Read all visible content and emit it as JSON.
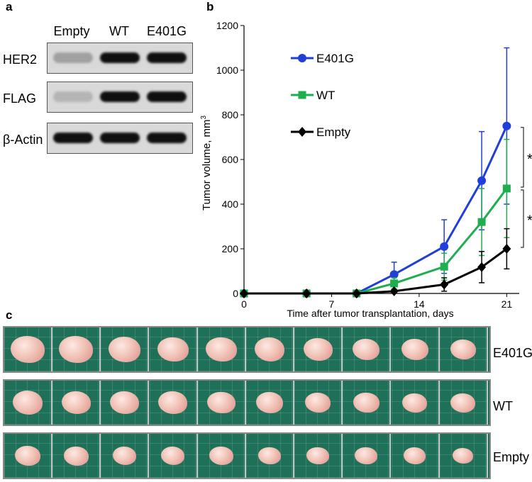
{
  "panels": {
    "a": "a",
    "b": "b",
    "c": "c"
  },
  "blot": {
    "lanes": [
      "Empty",
      "WT",
      "E401G"
    ],
    "rows": [
      {
        "label": "HER2",
        "intensity": [
          0.25,
          1.0,
          1.0
        ]
      },
      {
        "label": "FLAG",
        "intensity": [
          0.15,
          1.0,
          1.0
        ]
      },
      {
        "label": "β-Actin",
        "intensity": [
          1.0,
          1.0,
          1.0
        ]
      }
    ]
  },
  "chart_data": {
    "type": "line",
    "xlabel": "Time after tumor transplantation, days",
    "ylabel": "Tumor volume, mm3",
    "ylabel_prefix": "Tumor volume, mm",
    "ylabel_sup": "3",
    "x_ticks": [
      "0",
      "7",
      "14",
      "21"
    ],
    "y_ticks": [
      "0",
      "200",
      "400",
      "600",
      "800",
      "1000",
      "1200"
    ],
    "xlim": [
      0,
      22
    ],
    "ylim": [
      0,
      1200
    ],
    "legend_position": "top-left",
    "series": [
      {
        "name": "E401G",
        "color": "#1f3fd8",
        "marker": "circle",
        "x": [
          0,
          5,
          9,
          12,
          16,
          19,
          21
        ],
        "y": [
          0,
          0,
          0,
          85,
          210,
          505,
          750
        ],
        "err": [
          0,
          0,
          0,
          55,
          120,
          220,
          350
        ]
      },
      {
        "name": "WT",
        "color": "#1fae4f",
        "marker": "square",
        "x": [
          0,
          5,
          9,
          12,
          16,
          19,
          21
        ],
        "y": [
          0,
          0,
          0,
          45,
          120,
          320,
          470
        ],
        "err": [
          0,
          0,
          0,
          25,
          60,
          150,
          220
        ]
      },
      {
        "name": "Empty",
        "color": "#000000",
        "marker": "diamond",
        "x": [
          0,
          5,
          9,
          12,
          16,
          19,
          21
        ],
        "y": [
          0,
          0,
          0,
          10,
          40,
          118,
          200
        ],
        "err": [
          0,
          0,
          0,
          8,
          30,
          70,
          90
        ]
      }
    ],
    "significance": [
      {
        "label": "*",
        "between": [
          "E401G",
          "WT"
        ]
      },
      {
        "label": "*",
        "between": [
          "WT",
          "Empty"
        ]
      }
    ]
  },
  "tumor_rows": [
    {
      "label": "E401G",
      "sizes": [
        0.95,
        0.95,
        0.85,
        0.8,
        0.8,
        0.75,
        0.7,
        0.6,
        0.6,
        0.55
      ]
    },
    {
      "label": "WT",
      "sizes": [
        0.75,
        0.7,
        0.7,
        0.7,
        0.65,
        0.6,
        0.55,
        0.55,
        0.5,
        0.5
      ]
    },
    {
      "label": "Empty",
      "sizes": [
        0.55,
        0.5,
        0.45,
        0.45,
        0.45,
        0.4,
        0.4,
        0.4,
        0.35,
        0.3
      ]
    }
  ]
}
